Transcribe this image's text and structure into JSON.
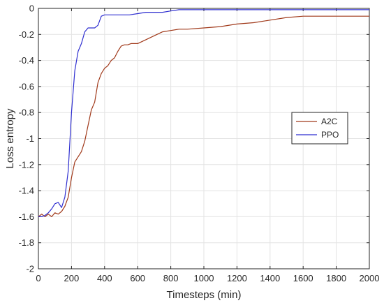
{
  "chart_data": {
    "type": "line",
    "title": "",
    "xlabel": "Timesteps (min)",
    "ylabel": "Loss entropy",
    "xlim": [
      0,
      2000
    ],
    "ylim": [
      -2,
      0
    ],
    "xticks": [
      0,
      200,
      400,
      600,
      800,
      1000,
      1200,
      1400,
      1600,
      1800,
      2000
    ],
    "yticks": [
      0,
      -0.2,
      -0.4,
      -0.6,
      -0.8,
      -1,
      -1.2,
      -1.4,
      -1.6,
      -1.8,
      -2
    ],
    "xtick_labels": [
      "0",
      "200",
      "400",
      "600",
      "800",
      "1000",
      "1200",
      "1400",
      "1600",
      "1800",
      "2000"
    ],
    "ytick_labels": [
      "0",
      "-0.2",
      "-0.4",
      "-0.6",
      "-0.8",
      "-1",
      "-1.2",
      "-1.4",
      "-1.6",
      "-1.8",
      "-2"
    ],
    "grid": true,
    "legend_position": "right",
    "series": [
      {
        "name": "A2C",
        "color": "#a0391a",
        "x": [
          0,
          20,
          40,
          60,
          80,
          100,
          120,
          140,
          160,
          180,
          200,
          220,
          240,
          260,
          280,
          300,
          320,
          340,
          360,
          380,
          400,
          420,
          440,
          460,
          480,
          500,
          520,
          540,
          560,
          580,
          600,
          650,
          700,
          750,
          800,
          850,
          900,
          1000,
          1100,
          1200,
          1300,
          1400,
          1500,
          1600,
          1700,
          1800,
          1900,
          2000
        ],
        "y": [
          -1.6,
          -1.58,
          -1.6,
          -1.58,
          -1.6,
          -1.57,
          -1.58,
          -1.56,
          -1.52,
          -1.45,
          -1.3,
          -1.18,
          -1.14,
          -1.1,
          -1.02,
          -0.9,
          -0.78,
          -0.72,
          -0.57,
          -0.5,
          -0.46,
          -0.44,
          -0.4,
          -0.38,
          -0.33,
          -0.29,
          -0.28,
          -0.28,
          -0.27,
          -0.27,
          -0.27,
          -0.24,
          -0.21,
          -0.18,
          -0.17,
          -0.16,
          -0.16,
          -0.15,
          -0.14,
          -0.12,
          -0.11,
          -0.09,
          -0.07,
          -0.06,
          -0.06,
          -0.06,
          -0.06,
          -0.06
        ]
      },
      {
        "name": "PPO",
        "color": "#2f2fd0",
        "x": [
          0,
          20,
          40,
          60,
          80,
          100,
          120,
          140,
          160,
          180,
          200,
          220,
          240,
          260,
          280,
          300,
          320,
          340,
          360,
          380,
          400,
          450,
          500,
          550,
          600,
          650,
          700,
          750,
          800,
          850,
          900,
          1000,
          1200,
          1400,
          1600,
          1800,
          2000
        ],
        "y": [
          -1.6,
          -1.6,
          -1.59,
          -1.57,
          -1.54,
          -1.5,
          -1.49,
          -1.53,
          -1.45,
          -1.25,
          -0.8,
          -0.48,
          -0.33,
          -0.27,
          -0.18,
          -0.15,
          -0.15,
          -0.15,
          -0.13,
          -0.06,
          -0.05,
          -0.05,
          -0.05,
          -0.05,
          -0.04,
          -0.03,
          -0.03,
          -0.03,
          -0.02,
          -0.01,
          -0.01,
          -0.01,
          -0.01,
          -0.01,
          -0.01,
          -0.01,
          -0.01
        ]
      }
    ]
  }
}
